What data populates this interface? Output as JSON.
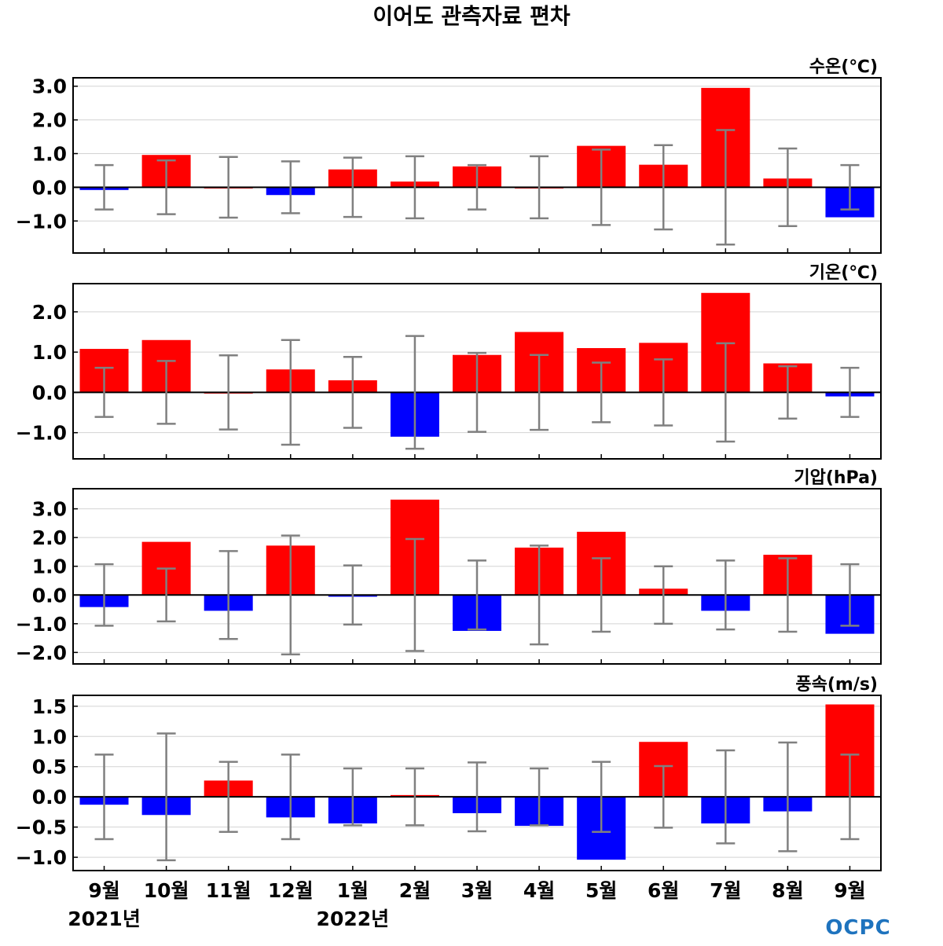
{
  "title": "이어도 관측자료 편차",
  "logo": "OCPC",
  "years": [
    {
      "label": "2021년",
      "at_month_index": 0
    },
    {
      "label": "2022년",
      "at_month_index": 4
    }
  ],
  "chart_data": {
    "type": "bar",
    "categories": [
      "9월",
      "10월",
      "11월",
      "12월",
      "1월",
      "2월",
      "3월",
      "4월",
      "5월",
      "6월",
      "7월",
      "8월",
      "9월"
    ],
    "colors": {
      "positive": "#ff0000",
      "negative": "#0000ff",
      "error_bar": "#808080",
      "grid": "#d3d3d3",
      "zero_line": "#000000"
    },
    "panels": [
      {
        "label": "수온(℃)",
        "ylim": [
          -1.95,
          3.25
        ],
        "yticks": [
          3.0,
          2.0,
          1.0,
          0.0,
          -1.0
        ],
        "tick_labels": [
          "3.0",
          "2.0",
          "1.0",
          "0.0",
          "−1.0"
        ],
        "values": [
          -0.08,
          0.96,
          0.0,
          -0.23,
          0.53,
          0.17,
          0.62,
          0.0,
          1.23,
          0.67,
          2.95,
          0.26,
          -0.89
        ],
        "std": [
          0.66,
          0.8,
          0.9,
          0.77,
          0.88,
          0.92,
          0.66,
          0.92,
          1.12,
          1.25,
          1.7,
          1.15,
          0.66
        ]
      },
      {
        "label": "기온(℃)",
        "ylim": [
          -1.65,
          2.7
        ],
        "yticks": [
          2.0,
          1.0,
          0.0,
          -1.0
        ],
        "tick_labels": [
          "2.0",
          "1.0",
          "0.0",
          "−1.0"
        ],
        "values": [
          1.08,
          1.3,
          0.0,
          0.57,
          0.3,
          -1.1,
          0.93,
          1.5,
          1.1,
          1.23,
          2.47,
          0.72,
          -0.1
        ],
        "std": [
          0.61,
          0.78,
          0.92,
          1.3,
          0.88,
          1.4,
          0.98,
          0.93,
          0.74,
          0.82,
          1.22,
          0.65,
          0.61
        ]
      },
      {
        "label": "기압(hPa)",
        "ylim": [
          -2.4,
          3.7
        ],
        "yticks": [
          3.0,
          2.0,
          1.0,
          0.0,
          -1.0,
          -2.0
        ],
        "tick_labels": [
          "3.0",
          "2.0",
          "1.0",
          "0.0",
          "−1.0",
          "−2.0"
        ],
        "values": [
          -0.42,
          1.85,
          -0.55,
          1.72,
          -0.06,
          3.32,
          -1.25,
          1.65,
          2.2,
          0.22,
          -0.55,
          1.4,
          -1.35
        ],
        "std": [
          1.07,
          0.92,
          1.53,
          2.07,
          1.03,
          1.95,
          1.2,
          1.72,
          1.28,
          1.0,
          1.2,
          1.28,
          1.07
        ]
      },
      {
        "label": "풍속(m/s)",
        "ylim": [
          -1.22,
          1.68
        ],
        "yticks": [
          1.5,
          1.0,
          0.5,
          0.0,
          -0.5,
          -1.0
        ],
        "tick_labels": [
          "1.5",
          "1.0",
          "0.5",
          "0.0",
          "−0.5",
          "−1.0"
        ],
        "values": [
          -0.13,
          -0.3,
          0.27,
          -0.34,
          -0.44,
          0.03,
          -0.27,
          -0.48,
          -1.04,
          0.91,
          -0.44,
          -0.24,
          1.53
        ],
        "std": [
          0.7,
          1.05,
          0.58,
          0.7,
          0.47,
          0.47,
          0.57,
          0.47,
          0.58,
          0.51,
          0.77,
          0.9,
          0.7
        ]
      }
    ]
  }
}
